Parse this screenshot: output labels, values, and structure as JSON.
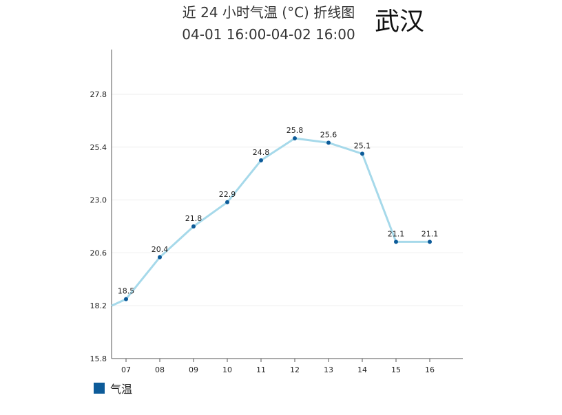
{
  "city": "武汉",
  "chart_data": {
    "type": "line",
    "title": "近 24 小时气温 (°C) 折线图",
    "subtitle": "04-01 16:00-04-02 16:00",
    "categories": [
      "07",
      "08",
      "09",
      "10",
      "11",
      "12",
      "13",
      "14",
      "15",
      "16"
    ],
    "series": [
      {
        "name": "气温",
        "values": [
          18.5,
          20.4,
          21.8,
          22.9,
          24.8,
          25.8,
          25.6,
          25.1,
          21.1,
          21.1
        ],
        "line_color": "#a6d9ea",
        "marker_color": "#0d5b99"
      }
    ],
    "leading_value": 18.2,
    "yticks": [
      "15.8",
      "18.2",
      "20.6",
      "23.0",
      "25.4",
      "27.8"
    ],
    "ylim": [
      15.8,
      29.8
    ],
    "grid": true,
    "legend_position": "bottom-left"
  }
}
